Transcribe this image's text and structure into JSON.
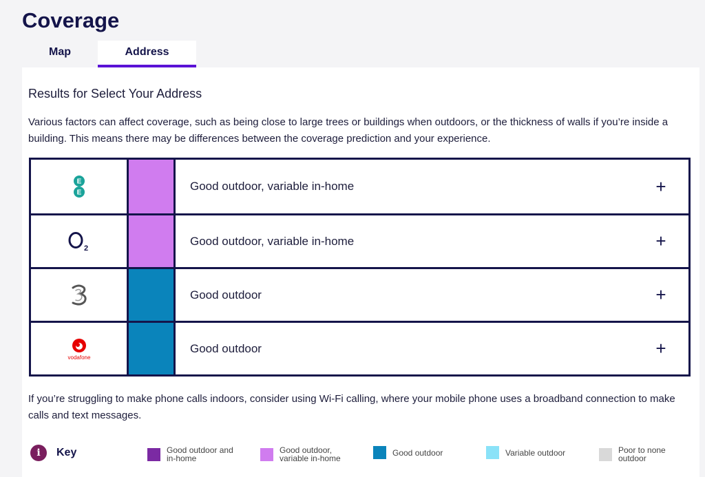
{
  "page_title": "Coverage",
  "tabs": [
    {
      "label": "Map",
      "active": false
    },
    {
      "label": "Address",
      "active": true
    }
  ],
  "results_heading": "Results for Select Your Address",
  "intro": "Various factors can affect coverage, such as being close to large trees or buildings when outdoors, or the thickness of walls if you’re inside a building. This means there may be differences between the coverage prediction and your experience.",
  "operators": [
    {
      "name": "EE",
      "logo_icon": "ee-logo-icon",
      "status": "Good outdoor, variable in-home",
      "color": "#d07cef",
      "expand": "+"
    },
    {
      "name": "O2",
      "logo_icon": "o2-logo-icon",
      "status": "Good outdoor, variable in-home",
      "color": "#d07cef",
      "expand": "+"
    },
    {
      "name": "Three",
      "logo_icon": "three-logo-icon",
      "status": "Good outdoor",
      "color": "#0a84bb",
      "expand": "+"
    },
    {
      "name": "Vodafone",
      "logo_icon": "vodafone-logo-icon",
      "logo_text": "vodafone",
      "status": "Good outdoor",
      "color": "#0a84bb",
      "expand": "+"
    }
  ],
  "footer_note": "If you’re struggling to make phone calls indoors, consider using Wi-Fi calling, where your mobile phone uses a broadband connection to make calls and text messages.",
  "key": {
    "label": "Key",
    "icon": "info-icon",
    "icon_glyph": "i",
    "items": [
      {
        "line1": "Good outdoor and",
        "line2": "in-home",
        "color": "#7b2aa3"
      },
      {
        "line1": "Good outdoor,",
        "line2": "variable in-home",
        "color": "#d07cef"
      },
      {
        "line1": "Good outdoor",
        "line2": "",
        "color": "#0a84bb"
      },
      {
        "line1": "Variable outdoor",
        "line2": "",
        "color": "#8ae2f8"
      },
      {
        "line1": "Poor to none",
        "line2": "outdoor",
        "color": "#d9d9d9"
      }
    ]
  }
}
